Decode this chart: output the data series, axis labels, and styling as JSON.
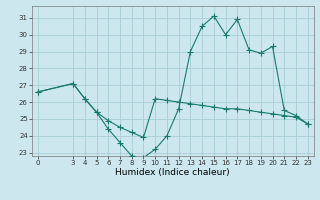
{
  "xlabel": "Humidex (Indice chaleur)",
  "bg_color": "#cce8ee",
  "line_color": "#1a7a6e",
  "grid_color": "#aacdd6",
  "series1_x": [
    0,
    3,
    4,
    5,
    6,
    7,
    8,
    9,
    10,
    11,
    12,
    13,
    14,
    15,
    16,
    17,
    18,
    19,
    20,
    21,
    22,
    23
  ],
  "series1_y": [
    26.6,
    27.1,
    26.2,
    25.4,
    24.4,
    23.6,
    22.8,
    22.7,
    23.2,
    24.0,
    25.6,
    29.0,
    30.5,
    31.1,
    30.0,
    30.9,
    29.1,
    28.9,
    29.3,
    25.5,
    25.2,
    24.7
  ],
  "series2_x": [
    0,
    3,
    4,
    5,
    6,
    7,
    8,
    9,
    10,
    11,
    12,
    13,
    14,
    15,
    16,
    17,
    18,
    19,
    20,
    21,
    22,
    23
  ],
  "series2_y": [
    26.6,
    27.1,
    26.2,
    25.4,
    24.9,
    24.5,
    24.2,
    23.9,
    26.2,
    26.1,
    26.0,
    25.9,
    25.8,
    25.7,
    25.6,
    25.6,
    25.5,
    25.4,
    25.3,
    25.2,
    25.1,
    24.7
  ],
  "xlim": [
    -0.5,
    23.5
  ],
  "ylim": [
    22.8,
    31.7
  ],
  "xticks": [
    0,
    3,
    4,
    5,
    6,
    7,
    8,
    9,
    10,
    11,
    12,
    13,
    14,
    15,
    16,
    17,
    18,
    19,
    20,
    21,
    22,
    23
  ],
  "yticks": [
    23,
    24,
    25,
    26,
    27,
    28,
    29,
    30,
    31
  ],
  "tick_fontsize": 5.0,
  "xlabel_fontsize": 6.5,
  "marker_size": 2.0,
  "linewidth": 0.8
}
